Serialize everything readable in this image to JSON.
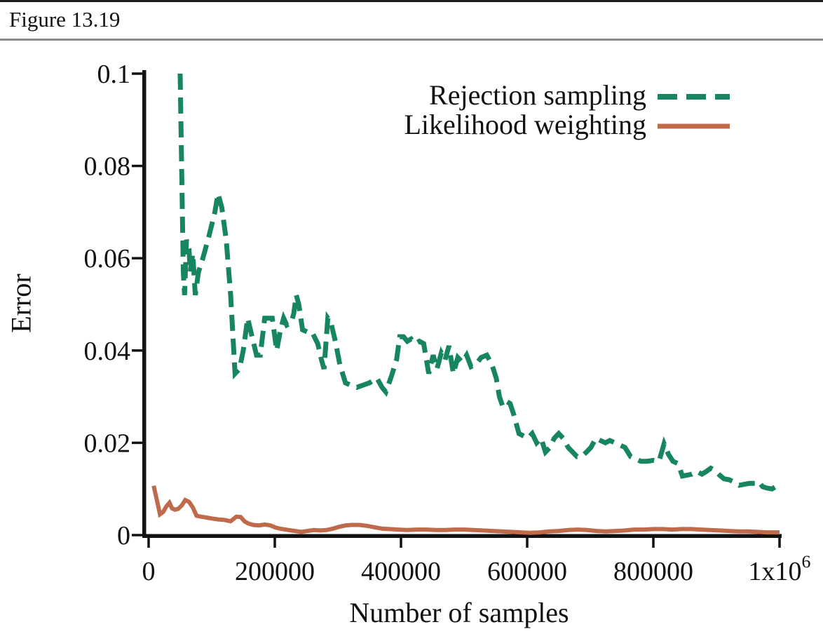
{
  "figure": {
    "label": "Figure 13.19"
  },
  "chart_data": {
    "type": "line",
    "title": "",
    "xlabel": "Number of samples",
    "ylabel": "Error",
    "xlim": [
      0,
      1000000
    ],
    "ylim": [
      0,
      0.1
    ],
    "grid": false,
    "legend_position": "top-right-inside",
    "x_ticks": [
      {
        "value": 0,
        "label": "0"
      },
      {
        "value": 200000,
        "label": "200000"
      },
      {
        "value": 400000,
        "label": "400000"
      },
      {
        "value": 600000,
        "label": "600000"
      },
      {
        "value": 800000,
        "label": "800000"
      },
      {
        "value": 1000000,
        "label": "1x10^6"
      }
    ],
    "y_ticks": [
      {
        "value": 0,
        "label": "0"
      },
      {
        "value": 0.02,
        "label": "0.02"
      },
      {
        "value": 0.04,
        "label": "0.04"
      },
      {
        "value": 0.06,
        "label": "0.06"
      },
      {
        "value": 0.08,
        "label": "0.08"
      },
      {
        "value": 0.1,
        "label": "0.1"
      }
    ],
    "series": [
      {
        "name": "Rejection sampling",
        "color": "#17855d",
        "style": "dashed",
        "points": [
          [
            50000,
            0.1
          ],
          [
            55000,
            0.057
          ],
          [
            57000,
            0.052
          ],
          [
            60000,
            0.064
          ],
          [
            64000,
            0.062
          ],
          [
            66000,
            0.057
          ],
          [
            70000,
            0.061
          ],
          [
            74000,
            0.052
          ],
          [
            79000,
            0.057
          ],
          [
            86000,
            0.06
          ],
          [
            96000,
            0.065
          ],
          [
            105000,
            0.07
          ],
          [
            110000,
            0.074
          ],
          [
            116000,
            0.071
          ],
          [
            123000,
            0.064
          ],
          [
            130000,
            0.052
          ],
          [
            137000,
            0.035
          ],
          [
            144000,
            0.036
          ],
          [
            150000,
            0.04
          ],
          [
            157000,
            0.047
          ],
          [
            164000,
            0.043
          ],
          [
            171000,
            0.039
          ],
          [
            177000,
            0.039
          ],
          [
            184000,
            0.047
          ],
          [
            190000,
            0.047
          ],
          [
            196000,
            0.047
          ],
          [
            203000,
            0.04
          ],
          [
            209000,
            0.0445
          ],
          [
            214000,
            0.047
          ],
          [
            219000,
            0.0455
          ],
          [
            226000,
            0.046
          ],
          [
            230000,
            0.048
          ],
          [
            234000,
            0.052
          ],
          [
            238000,
            0.05
          ],
          [
            244000,
            0.0445
          ],
          [
            252000,
            0.044
          ],
          [
            259000,
            0.044
          ],
          [
            268000,
            0.0415
          ],
          [
            274000,
            0.038
          ],
          [
            278000,
            0.036
          ],
          [
            284000,
            0.047
          ],
          [
            289000,
            0.046
          ],
          [
            296000,
            0.042
          ],
          [
            303000,
            0.037
          ],
          [
            312000,
            0.033
          ],
          [
            320000,
            0.0325
          ],
          [
            330000,
            0.032
          ],
          [
            340000,
            0.0325
          ],
          [
            350000,
            0.033
          ],
          [
            362000,
            0.034
          ],
          [
            370000,
            0.032
          ],
          [
            376000,
            0.031
          ],
          [
            385000,
            0.0345
          ],
          [
            393000,
            0.038
          ],
          [
            398000,
            0.043
          ],
          [
            404000,
            0.043
          ],
          [
            410000,
            0.042
          ],
          [
            416000,
            0.0425
          ],
          [
            422000,
            0.0415
          ],
          [
            429000,
            0.042
          ],
          [
            436000,
            0.0415
          ],
          [
            444000,
            0.035
          ],
          [
            451000,
            0.039
          ],
          [
            457000,
            0.036
          ],
          [
            464000,
            0.0395
          ],
          [
            470000,
            0.038
          ],
          [
            476000,
            0.041
          ],
          [
            483000,
            0.035
          ],
          [
            490000,
            0.0385
          ],
          [
            497000,
            0.0375
          ],
          [
            504000,
            0.039
          ],
          [
            511000,
            0.0365
          ],
          [
            519000,
            0.037
          ],
          [
            527000,
            0.0385
          ],
          [
            536000,
            0.039
          ],
          [
            544000,
            0.037
          ],
          [
            551000,
            0.034
          ],
          [
            556000,
            0.03
          ],
          [
            561000,
            0.028
          ],
          [
            567000,
            0.029
          ],
          [
            573000,
            0.0285
          ],
          [
            579000,
            0.026
          ],
          [
            587000,
            0.022
          ],
          [
            594000,
            0.0215
          ],
          [
            601000,
            0.021
          ],
          [
            608000,
            0.022
          ],
          [
            615000,
            0.02
          ],
          [
            622000,
            0.021
          ],
          [
            629000,
            0.018
          ],
          [
            636000,
            0.019
          ],
          [
            643000,
            0.021
          ],
          [
            650000,
            0.022
          ],
          [
            657000,
            0.021
          ],
          [
            665000,
            0.019
          ],
          [
            672000,
            0.018
          ],
          [
            679000,
            0.017
          ],
          [
            686000,
            0.017
          ],
          [
            694000,
            0.018
          ],
          [
            701000,
            0.019
          ],
          [
            709000,
            0.021
          ],
          [
            716000,
            0.0205
          ],
          [
            724000,
            0.02
          ],
          [
            731000,
            0.0205
          ],
          [
            739000,
            0.02
          ],
          [
            747000,
            0.0195
          ],
          [
            755000,
            0.019
          ],
          [
            764000,
            0.017
          ],
          [
            772000,
            0.0165
          ],
          [
            780000,
            0.016
          ],
          [
            790000,
            0.016
          ],
          [
            800000,
            0.0162
          ],
          [
            809000,
            0.016
          ],
          [
            817000,
            0.0198
          ],
          [
            824000,
            0.0175
          ],
          [
            831000,
            0.016
          ],
          [
            839000,
            0.0155
          ],
          [
            846000,
            0.0128
          ],
          [
            854000,
            0.013
          ],
          [
            861000,
            0.0132
          ],
          [
            869000,
            0.0138
          ],
          [
            877000,
            0.0132
          ],
          [
            884000,
            0.0138
          ],
          [
            891000,
            0.0145
          ],
          [
            898000,
            0.014
          ],
          [
            905000,
            0.013
          ],
          [
            912000,
            0.0122
          ],
          [
            920000,
            0.012
          ],
          [
            928000,
            0.0115
          ],
          [
            936000,
            0.0108
          ],
          [
            944000,
            0.011
          ],
          [
            952000,
            0.0112
          ],
          [
            961000,
            0.0112
          ],
          [
            967000,
            0.0116
          ],
          [
            973000,
            0.0105
          ],
          [
            980000,
            0.0102
          ],
          [
            988000,
            0.01
          ],
          [
            994000,
            0.0105
          ],
          [
            1000000,
            0.0102
          ]
        ]
      },
      {
        "name": "Likelihood weighting",
        "color": "#bf6a4b",
        "style": "solid",
        "points": [
          [
            8000,
            0.0107
          ],
          [
            14000,
            0.007
          ],
          [
            18000,
            0.0045
          ],
          [
            23000,
            0.005
          ],
          [
            28000,
            0.0062
          ],
          [
            33000,
            0.007
          ],
          [
            37000,
            0.0058
          ],
          [
            42000,
            0.0055
          ],
          [
            47000,
            0.0057
          ],
          [
            53000,
            0.0065
          ],
          [
            58000,
            0.0076
          ],
          [
            64000,
            0.0072
          ],
          [
            70000,
            0.006
          ],
          [
            76000,
            0.0042
          ],
          [
            83000,
            0.004
          ],
          [
            92000,
            0.0038
          ],
          [
            100000,
            0.0036
          ],
          [
            110000,
            0.0034
          ],
          [
            120000,
            0.0033
          ],
          [
            130000,
            0.003
          ],
          [
            139000,
            0.004
          ],
          [
            146000,
            0.0039
          ],
          [
            152000,
            0.003
          ],
          [
            158000,
            0.0025
          ],
          [
            166000,
            0.0022
          ],
          [
            175000,
            0.0021
          ],
          [
            184000,
            0.0023
          ],
          [
            193000,
            0.0021
          ],
          [
            202000,
            0.0016
          ],
          [
            212000,
            0.0013
          ],
          [
            222000,
            0.0011
          ],
          [
            232000,
            0.0009
          ],
          [
            242000,
            0.0007
          ],
          [
            252000,
            0.0009
          ],
          [
            262000,
            0.0011
          ],
          [
            272000,
            0.001
          ],
          [
            282000,
            0.0011
          ],
          [
            292000,
            0.0014
          ],
          [
            302000,
            0.0018
          ],
          [
            312000,
            0.0021
          ],
          [
            322000,
            0.0022
          ],
          [
            334000,
            0.0022
          ],
          [
            346000,
            0.002
          ],
          [
            358000,
            0.0017
          ],
          [
            370000,
            0.0014
          ],
          [
            382000,
            0.0013
          ],
          [
            395000,
            0.0012
          ],
          [
            410000,
            0.0011
          ],
          [
            425000,
            0.0012
          ],
          [
            440000,
            0.0012
          ],
          [
            455000,
            0.0011
          ],
          [
            470000,
            0.0011
          ],
          [
            485000,
            0.0012
          ],
          [
            500000,
            0.0012
          ],
          [
            515000,
            0.0011
          ],
          [
            530000,
            0.001
          ],
          [
            545000,
            0.0009
          ],
          [
            560000,
            0.0008
          ],
          [
            575000,
            0.0007
          ],
          [
            590000,
            0.0006
          ],
          [
            605000,
            0.0005
          ],
          [
            620000,
            0.0006
          ],
          [
            635000,
            0.0008
          ],
          [
            650000,
            0.0009
          ],
          [
            665000,
            0.0011
          ],
          [
            680000,
            0.0012
          ],
          [
            695000,
            0.0011
          ],
          [
            710000,
            0.0009
          ],
          [
            725000,
            0.0008
          ],
          [
            740000,
            0.0009
          ],
          [
            755000,
            0.001
          ],
          [
            770000,
            0.0012
          ],
          [
            785000,
            0.0012
          ],
          [
            800000,
            0.0013
          ],
          [
            815000,
            0.0013
          ],
          [
            830000,
            0.0012
          ],
          [
            845000,
            0.0013
          ],
          [
            860000,
            0.0013
          ],
          [
            875000,
            0.0012
          ],
          [
            890000,
            0.0011
          ],
          [
            905000,
            0.001
          ],
          [
            920000,
            0.0009
          ],
          [
            935000,
            0.0008
          ],
          [
            950000,
            0.0008
          ],
          [
            965000,
            0.0007
          ],
          [
            980000,
            0.0006
          ],
          [
            1000000,
            0.0006
          ]
        ]
      }
    ]
  }
}
